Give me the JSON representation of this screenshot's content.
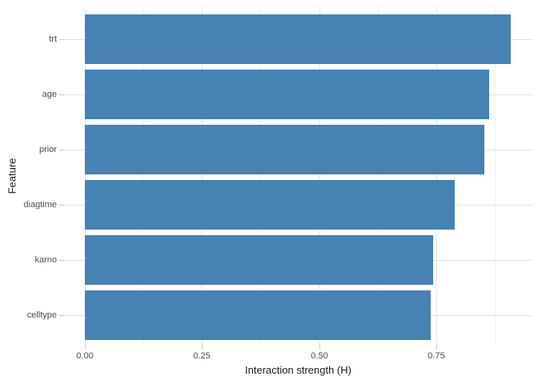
{
  "chart_data": {
    "type": "bar",
    "orientation": "horizontal",
    "title": "",
    "xlabel": "Interaction strength (H)",
    "ylabel": "Feature",
    "categories_top_to_bottom": [
      "trt",
      "age",
      "prior",
      "diagtime",
      "karno",
      "celltype"
    ],
    "values": [
      0.909,
      0.863,
      0.853,
      0.789,
      0.743,
      0.738
    ],
    "x_tick_labels": [
      "0.00",
      "0.25",
      "0.50",
      "0.75"
    ],
    "x_tick_values": [
      0,
      0.25,
      0.5,
      0.75
    ],
    "x_minor_grid_values": [
      0.125,
      0.375,
      0.625,
      0.875
    ],
    "xlim_display": [
      -0.045,
      0.955
    ],
    "grid": "on",
    "legend": "none",
    "colors": {
      "bar_fill": "#4682b4",
      "grid_major": "#e3e3e3",
      "grid_minor": "#efefef",
      "tick_mark": "#c9c9c9",
      "tick_label": "#4d4d4d",
      "axis_title": "#1a1a1a",
      "background": "#ffffff"
    }
  }
}
